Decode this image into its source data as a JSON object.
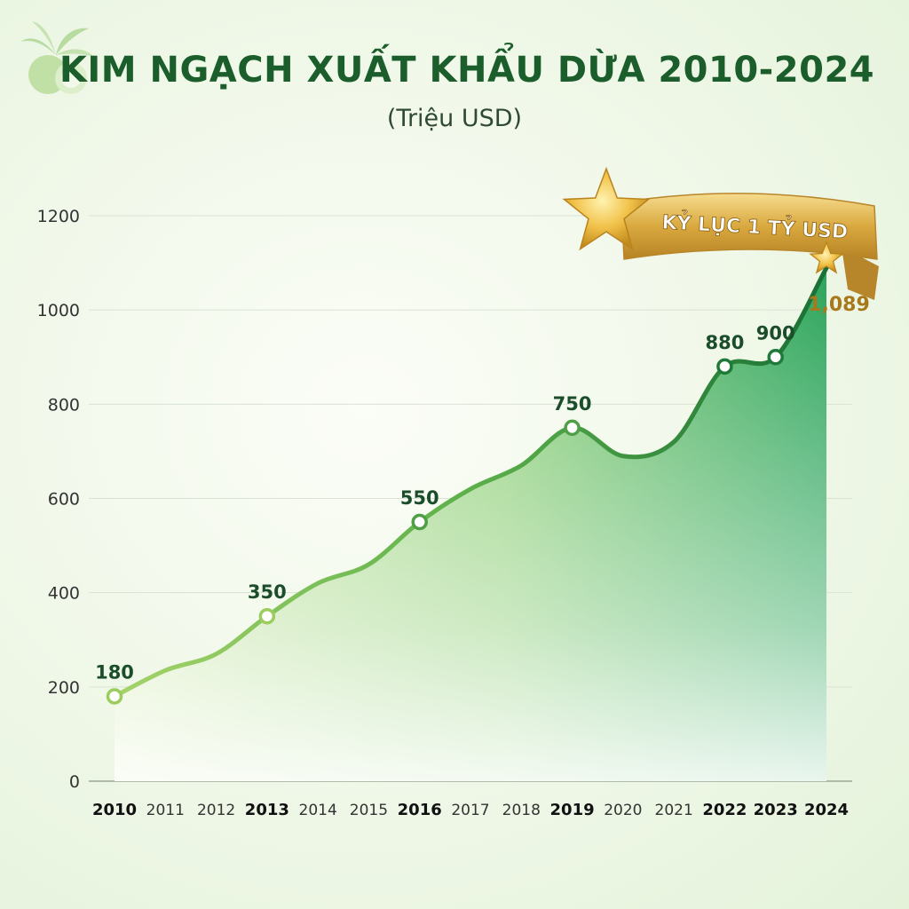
{
  "header": {
    "title": "KIM NGẠCH XUẤT KHẨU DỪA 2010-2024",
    "subtitle": "(Triệu USD)"
  },
  "banner": {
    "text": "KỶ LỤC 1 TỶ USD"
  },
  "colors": {
    "title": "#1b5e2c",
    "line_light": "#9fcf5f",
    "line_dark": "#1f7a3a",
    "fill_light": "#c7e59a",
    "fill_dark": "#2aa45a",
    "gold": "#c99a2e",
    "label_dark": "#1b4d2a",
    "record_label": "#a8781c"
  },
  "chart_data": {
    "type": "area",
    "title": "KIM NGẠCH XUẤT KHẨU DỪA 2010-2024",
    "subtitle": "(Triệu USD)",
    "xlabel": "",
    "ylabel": "",
    "ylim": [
      0,
      1200
    ],
    "yticks": [
      0,
      200,
      400,
      600,
      800,
      1000,
      1200
    ],
    "grid": true,
    "x": [
      "2010",
      "2011",
      "2012",
      "2013",
      "2014",
      "2015",
      "2016",
      "2017",
      "2018",
      "2019",
      "2020",
      "2021",
      "2022",
      "2023",
      "2024"
    ],
    "bold_years": [
      "2010",
      "2013",
      "2016",
      "2019",
      "2022",
      "2023",
      "2024"
    ],
    "values": [
      180,
      235,
      270,
      350,
      420,
      460,
      550,
      620,
      670,
      750,
      690,
      720,
      880,
      900,
      1089
    ],
    "labeled_points": [
      {
        "year": "2010",
        "label": "180"
      },
      {
        "year": "2013",
        "label": "350"
      },
      {
        "year": "2016",
        "label": "550"
      },
      {
        "year": "2019",
        "label": "750"
      },
      {
        "year": "2022",
        "label": "880"
      },
      {
        "year": "2023",
        "label": "900"
      },
      {
        "year": "2024",
        "label": "1,089"
      }
    ]
  }
}
